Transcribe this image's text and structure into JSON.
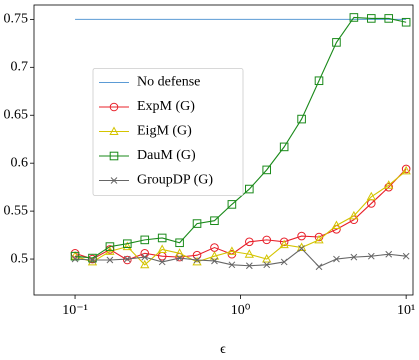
{
  "chart_data": {
    "type": "line",
    "x_label": "ϵ",
    "x": [
      0.1,
      0.1274,
      0.1624,
      0.2069,
      0.2637,
      0.336,
      0.4281,
      0.5456,
      0.6952,
      0.8859,
      1.129,
      1.438,
      1.833,
      2.336,
      2.976,
      3.793,
      4.833,
      6.158,
      7.848,
      10
    ],
    "xlim": [
      0.0565,
      11.0
    ],
    "xscale": "log",
    "xticks": [
      {
        "value": 0.1,
        "label": "10⁻¹"
      },
      {
        "value": 1,
        "label": "10⁰"
      },
      {
        "value": 10,
        "label": "10¹"
      }
    ],
    "ylim": [
      0.4625,
      0.765
    ],
    "yticks": [
      0.5,
      0.55,
      0.6,
      0.65,
      0.7,
      0.75
    ],
    "legend": "center left",
    "series": [
      {
        "name": "No defense",
        "color": "#5b9bd5",
        "marker": "none",
        "values": [
          0.75,
          0.75,
          0.75,
          0.75,
          0.75,
          0.75,
          0.75,
          0.75,
          0.75,
          0.75,
          0.75,
          0.75,
          0.75,
          0.75,
          0.75,
          0.75,
          0.75,
          0.75,
          0.75,
          0.75
        ]
      },
      {
        "name": "ExpM (G)",
        "color": "#e8202a",
        "marker": "circle",
        "values": [
          0.506,
          0.5,
          0.51,
          0.499,
          0.506,
          0.503,
          0.502,
          0.504,
          0.512,
          0.505,
          0.518,
          0.52,
          0.518,
          0.524,
          0.523,
          0.531,
          0.541,
          0.558,
          0.575,
          0.594
        ]
      },
      {
        "name": "EigM (G)",
        "color": "#d4c400",
        "marker": "triangle",
        "values": [
          0.503,
          0.497,
          0.508,
          0.513,
          0.494,
          0.51,
          0.506,
          0.497,
          0.503,
          0.508,
          0.505,
          0.5,
          0.515,
          0.512,
          0.52,
          0.535,
          0.545,
          0.565,
          0.577,
          0.592
        ]
      },
      {
        "name": "DauM (G)",
        "color": "#1a8a1a",
        "marker": "square",
        "values": [
          0.503,
          0.501,
          0.513,
          0.516,
          0.52,
          0.522,
          0.517,
          0.537,
          0.54,
          0.557,
          0.573,
          0.593,
          0.617,
          0.646,
          0.686,
          0.726,
          0.752,
          0.751,
          0.751,
          0.747
        ]
      },
      {
        "name": "GroupDP (G)",
        "color": "#666666",
        "marker": "x",
        "values": [
          0.5,
          0.499,
          0.499,
          0.5,
          0.502,
          0.497,
          0.501,
          0.499,
          0.498,
          0.494,
          0.493,
          0.494,
          0.497,
          0.511,
          0.492,
          0.5,
          0.502,
          0.503,
          0.505,
          0.503
        ]
      }
    ]
  }
}
